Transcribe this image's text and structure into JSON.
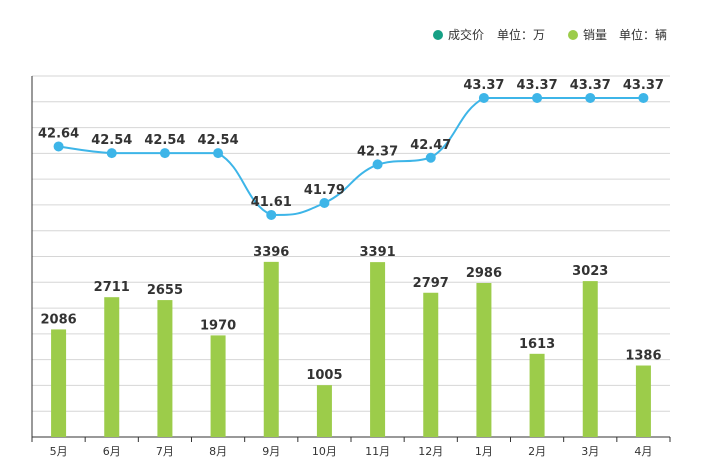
{
  "chart_data": {
    "type": "bar+line",
    "categories": [
      "5月",
      "6月",
      "7月",
      "8月",
      "9月",
      "10月",
      "11月",
      "12月",
      "1月",
      "2月",
      "3月",
      "4月"
    ],
    "series": [
      {
        "name": "成交价",
        "unit_label": "单位：万",
        "type": "line",
        "color": "#3db5e8",
        "legend_color": "#16a085",
        "values": [
          42.64,
          42.54,
          42.54,
          42.54,
          41.61,
          41.79,
          42.37,
          42.47,
          43.37,
          43.37,
          43.37,
          43.37
        ],
        "labels": [
          "42.64",
          "42.54",
          "42.54",
          "42.54",
          "41.61",
          "41.79",
          "42.37",
          "42.47",
          "43.37",
          "43.37",
          "43.37",
          "43.37"
        ],
        "ylim": [
          38.27,
          43.7
        ]
      },
      {
        "name": "销量",
        "unit_label": "单位：辆",
        "type": "bar",
        "color": "#9ccc4a",
        "legend_color": "#9ccc4a",
        "values": [
          2086,
          2711,
          2655,
          1970,
          3396,
          1005,
          3391,
          2797,
          2986,
          1613,
          3023,
          1386
        ],
        "labels": [
          "2086",
          "2711",
          "2655",
          "1970",
          "3396",
          "1005",
          "3391",
          "2797",
          "2986",
          "1613",
          "3023",
          "1386"
        ],
        "ylim": [
          0,
          7000
        ]
      }
    ],
    "grid": true,
    "legend_position": "top-right"
  }
}
